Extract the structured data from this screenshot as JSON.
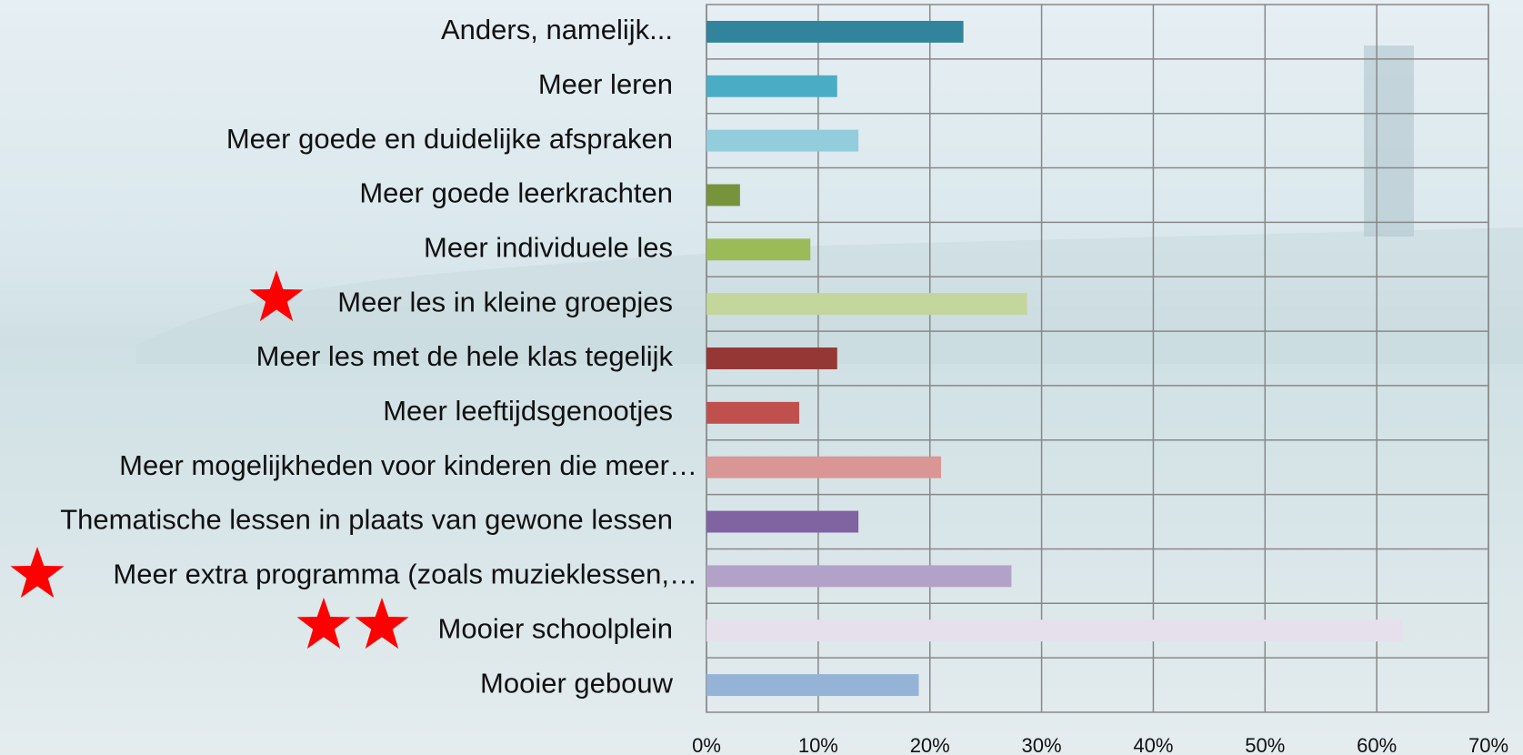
{
  "chart_data": {
    "type": "bar",
    "orientation": "horizontal",
    "categories": [
      "Anders, namelijk...",
      "Meer leren",
      "Meer goede en duidelijke afspraken",
      "Meer goede leerkrachten",
      "Meer individuele les",
      "Meer les in kleine groepjes",
      "Meer les met de hele klas tegelijk",
      "Meer leeftijdsgenootjes",
      "Meer mogelijkheden voor kinderen die meer…",
      "Thematische lessen in plaats van gewone lessen",
      "Meer extra programma (zoals muzieklessen,…",
      "Mooier schoolplein",
      "Mooier gebouw"
    ],
    "values": [
      0.23,
      0.117,
      0.136,
      0.03,
      0.093,
      0.287,
      0.117,
      0.083,
      0.21,
      0.136,
      0.273,
      0.623,
      0.19
    ],
    "colors": [
      "#31849b",
      "#4bacc6",
      "#92cddc",
      "#77933c",
      "#9bbb59",
      "#c3d69b",
      "#953735",
      "#c0504d",
      "#d99694",
      "#8064a2",
      "#b3a2c7",
      "#e6e0ec",
      "#95b3d7"
    ],
    "xlim": [
      0,
      0.7
    ],
    "xticks": [
      {
        "value": 0,
        "label": "0%"
      },
      {
        "value": 0.1,
        "label": "10%"
      },
      {
        "value": 0.2,
        "label": "20%"
      },
      {
        "value": 0.3,
        "label": "30%"
      },
      {
        "value": 0.4,
        "label": "40%"
      },
      {
        "value": 0.5,
        "label": "50%"
      },
      {
        "value": 0.6,
        "label": "60%"
      },
      {
        "value": 0.7,
        "label": "70%"
      }
    ],
    "grid": true
  }
}
